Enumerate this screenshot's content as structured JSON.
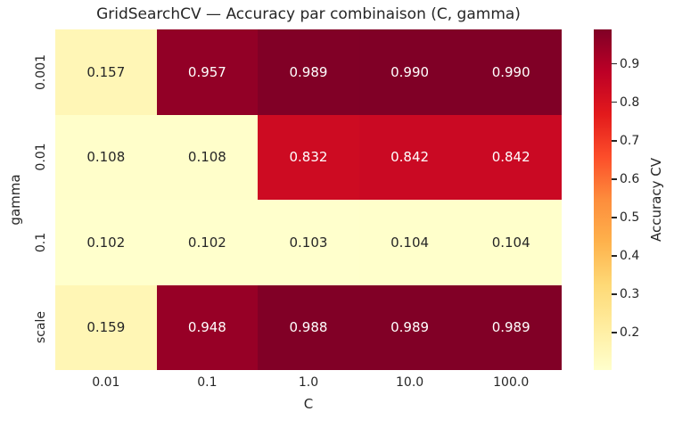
{
  "chart_data": {
    "type": "heatmap",
    "title": "GridSearchCV — Accuracy par combinaison (C, gamma)",
    "xlabel": "C",
    "ylabel": "gamma",
    "x_categories": [
      "0.01",
      "0.1",
      "1.0",
      "10.0",
      "100.0"
    ],
    "y_categories": [
      "0.001",
      "0.01",
      "0.1",
      "scale"
    ],
    "values": [
      [
        0.157,
        0.957,
        0.989,
        0.99,
        0.99
      ],
      [
        0.108,
        0.108,
        0.832,
        0.842,
        0.842
      ],
      [
        0.102,
        0.102,
        0.103,
        0.104,
        0.104
      ],
      [
        0.159,
        0.948,
        0.988,
        0.989,
        0.989
      ]
    ],
    "labels": [
      [
        "0.157",
        "0.957",
        "0.989",
        "0.990",
        "0.990"
      ],
      [
        "0.108",
        "0.108",
        "0.832",
        "0.842",
        "0.842"
      ],
      [
        "0.102",
        "0.102",
        "0.103",
        "0.104",
        "0.104"
      ],
      [
        "0.159",
        "0.948",
        "0.988",
        "0.989",
        "0.989"
      ]
    ],
    "vmin": 0.102,
    "vmax": 0.99,
    "colormap": {
      "name": "YlOrRd",
      "stops": [
        "#ffffcc",
        "#ffeda0",
        "#fed976",
        "#feb24c",
        "#fd8d3c",
        "#fc4e2a",
        "#e31a1c",
        "#bd0026",
        "#800026"
      ]
    },
    "colorbar": {
      "label": "Accuracy CV",
      "tick_labels": [
        "0.2",
        "0.3",
        "0.4",
        "0.5",
        "0.6",
        "0.7",
        "0.8",
        "0.9"
      ],
      "tick_values": [
        0.2,
        0.3,
        0.4,
        0.5,
        0.6,
        0.7,
        0.8,
        0.9
      ]
    },
    "text_colors": {
      "dark": "#262626",
      "light": "#ffffff"
    },
    "background": "#ffffff",
    "legend_position": "right",
    "grid": false
  }
}
